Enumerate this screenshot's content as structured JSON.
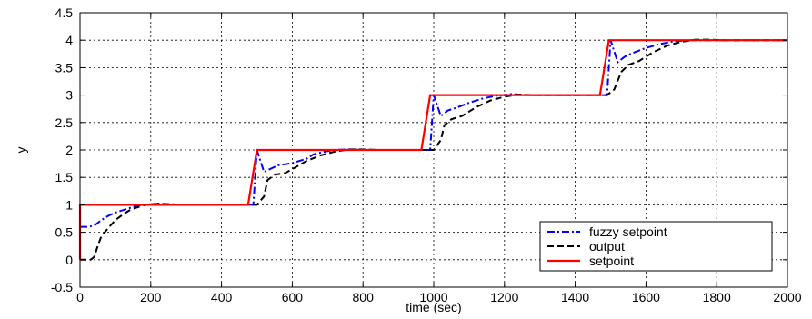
{
  "chart_data": {
    "type": "line",
    "title": "",
    "xlabel": "time (sec)",
    "ylabel": "y",
    "xlim": [
      0,
      2000
    ],
    "ylim": [
      -0.5,
      4.5
    ],
    "xticks": [
      0,
      200,
      400,
      600,
      800,
      1000,
      1200,
      1400,
      1600,
      1800,
      2000
    ],
    "yticks": [
      -0.5,
      0,
      0.5,
      1,
      1.5,
      2,
      2.5,
      3,
      3.5,
      4,
      4.5
    ],
    "xtick_labels": [
      "0",
      "200",
      "400",
      "600",
      "800",
      "1000",
      "1200",
      "1400",
      "1600",
      "1800",
      "2000"
    ],
    "ytick_labels": [
      "-0.5",
      "0",
      "0.5",
      "1",
      "1.5",
      "2",
      "2.5",
      "3",
      "3.5",
      "4",
      "4.5"
    ],
    "grid": true,
    "legend": "bottom-right",
    "series": [
      {
        "name": "fuzzy setpoint",
        "color": "#0000ff",
        "style": "dashdot",
        "points": [
          [
            0,
            0.6
          ],
          [
            20,
            0.6
          ],
          [
            40,
            0.62
          ],
          [
            60,
            0.72
          ],
          [
            80,
            0.8
          ],
          [
            100,
            0.86
          ],
          [
            120,
            0.9
          ],
          [
            140,
            0.94
          ],
          [
            160,
            0.98
          ],
          [
            180,
            1.0
          ],
          [
            200,
            1.01
          ],
          [
            220,
            1.02
          ],
          [
            260,
            1.01
          ],
          [
            300,
            1.0
          ],
          [
            490,
            1.0
          ],
          [
            500,
            2.0
          ],
          [
            520,
            1.6
          ],
          [
            540,
            1.66
          ],
          [
            560,
            1.72
          ],
          [
            600,
            1.76
          ],
          [
            640,
            1.84
          ],
          [
            660,
            1.92
          ],
          [
            700,
            1.98
          ],
          [
            720,
            2.0
          ],
          [
            760,
            2.01
          ],
          [
            800,
            2.0
          ],
          [
            990,
            2.0
          ],
          [
            1000,
            3.0
          ],
          [
            1020,
            2.62
          ],
          [
            1040,
            2.72
          ],
          [
            1060,
            2.76
          ],
          [
            1100,
            2.86
          ],
          [
            1140,
            2.94
          ],
          [
            1180,
            2.99
          ],
          [
            1220,
            3.02
          ],
          [
            1260,
            3.0
          ],
          [
            1490,
            3.0
          ],
          [
            1500,
            4.0
          ],
          [
            1520,
            3.6
          ],
          [
            1540,
            3.7
          ],
          [
            1560,
            3.76
          ],
          [
            1600,
            3.86
          ],
          [
            1640,
            3.93
          ],
          [
            1680,
            3.98
          ],
          [
            1720,
            4.0
          ],
          [
            1760,
            4.0
          ],
          [
            2000,
            4.0
          ]
        ]
      },
      {
        "name": "output",
        "color": "#000000",
        "style": "dashed",
        "points": [
          [
            0,
            0.0
          ],
          [
            30,
            0.0
          ],
          [
            40,
            0.05
          ],
          [
            50,
            0.25
          ],
          [
            60,
            0.42
          ],
          [
            80,
            0.58
          ],
          [
            100,
            0.72
          ],
          [
            120,
            0.82
          ],
          [
            140,
            0.9
          ],
          [
            160,
            0.95
          ],
          [
            180,
            0.99
          ],
          [
            200,
            1.01
          ],
          [
            220,
            1.02
          ],
          [
            260,
            1.01
          ],
          [
            300,
            1.0
          ],
          [
            480,
            1.0
          ],
          [
            500,
            1.0
          ],
          [
            520,
            1.15
          ],
          [
            530,
            1.45
          ],
          [
            550,
            1.55
          ],
          [
            580,
            1.58
          ],
          [
            600,
            1.65
          ],
          [
            640,
            1.8
          ],
          [
            680,
            1.9
          ],
          [
            720,
            1.97
          ],
          [
            760,
            2.01
          ],
          [
            800,
            2.01
          ],
          [
            840,
            2.0
          ],
          [
            980,
            2.0
          ],
          [
            1000,
            2.0
          ],
          [
            1020,
            2.18
          ],
          [
            1030,
            2.45
          ],
          [
            1050,
            2.56
          ],
          [
            1080,
            2.62
          ],
          [
            1120,
            2.78
          ],
          [
            1160,
            2.9
          ],
          [
            1200,
            2.97
          ],
          [
            1240,
            3.01
          ],
          [
            1280,
            3.0
          ],
          [
            1490,
            3.0
          ],
          [
            1510,
            3.1
          ],
          [
            1530,
            3.42
          ],
          [
            1550,
            3.55
          ],
          [
            1580,
            3.62
          ],
          [
            1620,
            3.78
          ],
          [
            1660,
            3.9
          ],
          [
            1700,
            3.97
          ],
          [
            1740,
            4.01
          ],
          [
            1780,
            4.01
          ],
          [
            1820,
            4.0
          ],
          [
            2000,
            4.0
          ]
        ]
      },
      {
        "name": "setpoint",
        "color": "#ff0000",
        "style": "solid",
        "points": [
          [
            0,
            0.0
          ],
          [
            0,
            1.0
          ],
          [
            475,
            1.0
          ],
          [
            500,
            2.0
          ],
          [
            965,
            2.0
          ],
          [
            990,
            3.0
          ],
          [
            1470,
            3.0
          ],
          [
            1495,
            4.0
          ],
          [
            2000,
            4.0
          ]
        ]
      }
    ]
  }
}
